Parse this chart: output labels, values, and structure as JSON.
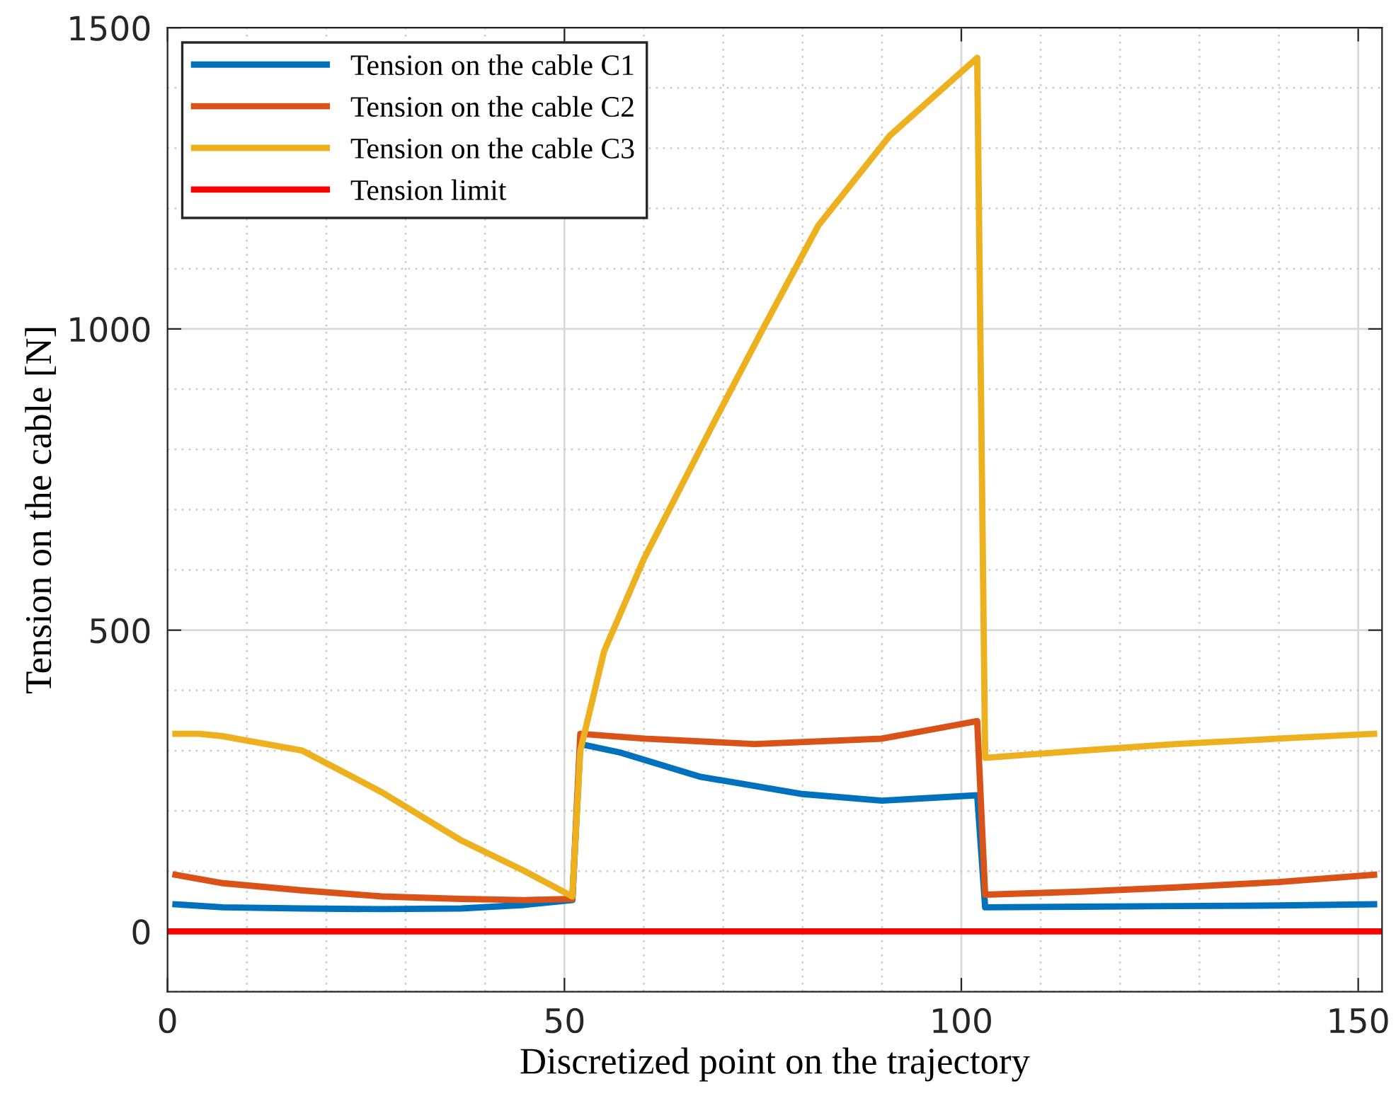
{
  "chart_data": {
    "type": "line",
    "xlabel": "Discretized point on the trajectory",
    "ylabel": "Tension on the cable [N]",
    "xlim": [
      0,
      153
    ],
    "ylim": [
      -100,
      1500
    ],
    "xticks": [
      0,
      50,
      100,
      150
    ],
    "yticks": [
      0,
      500,
      1000,
      1500
    ],
    "grid": true,
    "legend": "top left",
    "line_style": "solid",
    "marker": "none",
    "series": [
      {
        "name": "Tension on the cable C1",
        "color": "#0072bd",
        "x": [
          1,
          7,
          17,
          27,
          37,
          45,
          51,
          52,
          57,
          67,
          80,
          90,
          102,
          103,
          115,
          127,
          140,
          152
        ],
        "values": [
          45,
          40,
          38,
          37,
          38,
          44,
          52,
          311,
          297,
          257,
          228,
          217,
          226,
          40,
          41,
          42,
          43,
          45
        ]
      },
      {
        "name": "Tension on the cable C2",
        "color": "#d95319",
        "x": [
          1,
          7,
          17,
          27,
          37,
          45,
          51,
          52,
          60,
          74,
          90,
          102,
          103,
          115,
          127,
          140,
          152
        ],
        "values": [
          94,
          80,
          68,
          58,
          54,
          52,
          54,
          328,
          320,
          311,
          320,
          349,
          61,
          66,
          73,
          82,
          94
        ]
      },
      {
        "name": "Tension on the cable C3",
        "color": "#edb120",
        "x": [
          1,
          4,
          7,
          17,
          27,
          37,
          45,
          51,
          52,
          55,
          60,
          69,
          75,
          82,
          91,
          102,
          103,
          115,
          127,
          140,
          152
        ],
        "values": [
          328,
          328,
          324,
          300,
          231,
          151,
          100,
          58,
          300,
          465,
          618,
          849,
          1000,
          1172,
          1321,
          1450,
          288,
          300,
          311,
          320,
          328
        ]
      },
      {
        "name": "Tension limit",
        "color": "#ff0000",
        "x": [
          0,
          153
        ],
        "values": [
          0,
          0
        ]
      }
    ]
  }
}
